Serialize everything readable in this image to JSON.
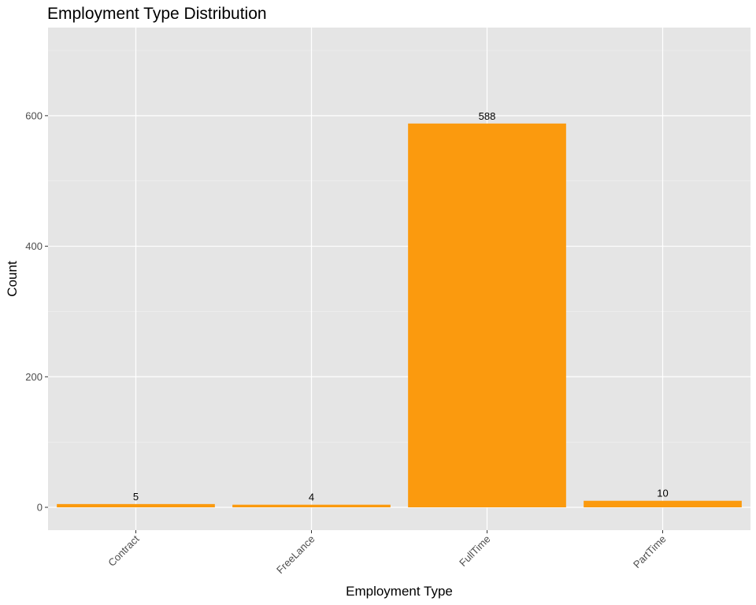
{
  "chart_data": {
    "type": "bar",
    "title": "Employment Type Distribution",
    "xlabel": "Employment Type",
    "ylabel": "Count",
    "categories": [
      "Contract",
      "FreeLance",
      "FullTime",
      "PartTime"
    ],
    "values": [
      5,
      4,
      588,
      10
    ],
    "data_labels": [
      "5",
      "4",
      "588",
      "10"
    ],
    "ylim": [
      -35,
      735
    ],
    "yticks": [
      0,
      200,
      400,
      600
    ],
    "ytick_labels": [
      "0",
      "200",
      "400",
      "600"
    ],
    "grid": true,
    "legend": "none",
    "colors": {
      "bar": "#FB9A0E",
      "panel_background": "#E5E5E5",
      "grid_major": "#FFFFFF",
      "grid_minor": "#F2F2F2",
      "tick_text": "#4D4D4D"
    }
  }
}
